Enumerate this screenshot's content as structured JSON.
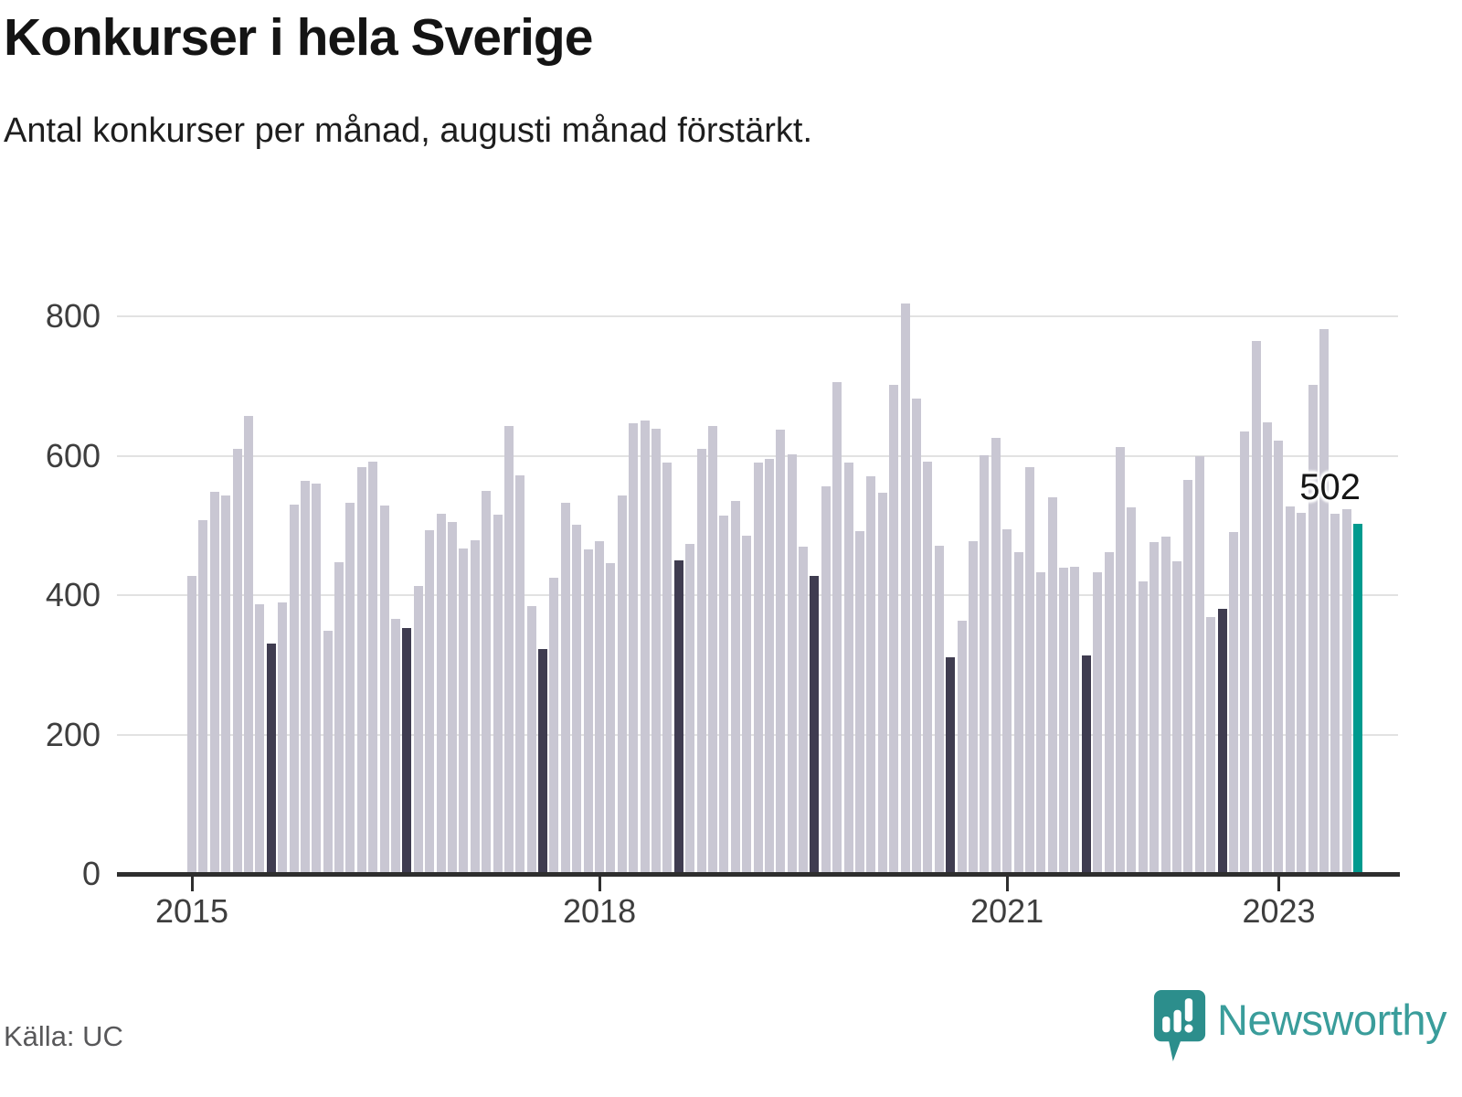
{
  "header": {
    "title": "Konkurser i hela Sverige",
    "subtitle": "Antal konkurser per månad, augusti månad förstärkt."
  },
  "footer": {
    "source": "Källa: UC",
    "brand_name": "Newsworthy"
  },
  "annotation": {
    "value_label": "502"
  },
  "colors": {
    "bar_default": "#c9c7d3",
    "bar_august": "#3f3c50",
    "bar_accent": "#009a8e",
    "gridline": "#e2e2e2",
    "axis": "#2e2e2e",
    "tick_label": "#3e3e3e",
    "brand_badge": "#2c8e8c",
    "brand_text": "#3a9d9b"
  },
  "chart_data": {
    "type": "bar",
    "title": "Konkurser i hela Sverige",
    "subtitle": "Antal konkurser per månad, augusti månad förstärkt.",
    "xlabel": "",
    "ylabel": "Antal konkurser per månad",
    "start_month": "2015-01",
    "end_month": "2023-08",
    "values": [
      427,
      508,
      548,
      543,
      610,
      657,
      387,
      331,
      389,
      530,
      564,
      560,
      349,
      447,
      532,
      583,
      591,
      528,
      366,
      353,
      413,
      493,
      517,
      505,
      467,
      479,
      549,
      515,
      642,
      572,
      384,
      323,
      425,
      533,
      501,
      465,
      478,
      446,
      543,
      647,
      651,
      639,
      590,
      450,
      473,
      610,
      643,
      514,
      535,
      485,
      590,
      596,
      637,
      602,
      470,
      428,
      556,
      706,
      590,
      492,
      571,
      547,
      701,
      818,
      682,
      592,
      471,
      311,
      363,
      477,
      601,
      625,
      495,
      461,
      584,
      433,
      540,
      440,
      441,
      313,
      433,
      462,
      613,
      526,
      420,
      476,
      484,
      449,
      565,
      599,
      369,
      380,
      490,
      635,
      764,
      648,
      622,
      527,
      518,
      702,
      782,
      517,
      523,
      502
    ],
    "august_indices": [
      7,
      19,
      31,
      43,
      55,
      67,
      79,
      91
    ],
    "accent_index": 103,
    "accent_value": 502,
    "accent_value_label": "502",
    "y_ticks": [
      0,
      200,
      400,
      600,
      800
    ],
    "ylim": [
      0,
      840
    ],
    "x_ticks": [
      {
        "label": "2015",
        "month_index": 0
      },
      {
        "label": "2018",
        "month_index": 36
      },
      {
        "label": "2021",
        "month_index": 72
      },
      {
        "label": "2023",
        "month_index": 96
      }
    ],
    "grid": "horizontal",
    "legend_position": "none"
  }
}
